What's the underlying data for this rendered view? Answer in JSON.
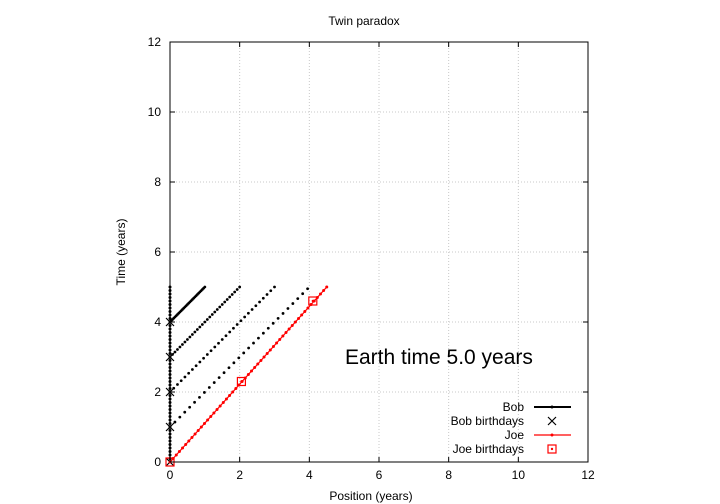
{
  "chart_data": {
    "type": "line",
    "title": "Twin paradox",
    "xlabel": "Position (years)",
    "ylabel": "Time (years)",
    "xlim": [
      0,
      12
    ],
    "ylim": [
      0,
      12
    ],
    "xticks": [
      "0",
      "2",
      "4",
      "6",
      "8",
      "10",
      "12"
    ],
    "yticks": [
      "0",
      "2",
      "4",
      "6",
      "8",
      "10",
      "12"
    ],
    "grid": true,
    "legend_position": "bottom-right",
    "annotation": "Earth time  5.0 years",
    "series": [
      {
        "name": "Bob",
        "style": "line-dots",
        "color": "#000000",
        "points": [
          [
            0,
            0
          ],
          [
            0,
            5.0
          ]
        ]
      },
      {
        "name": "Bob birthdays",
        "style": "cross",
        "color": "#000000",
        "points": [
          [
            0,
            0
          ],
          [
            0,
            1
          ],
          [
            0,
            2
          ],
          [
            0,
            3
          ],
          [
            0,
            4
          ]
        ]
      },
      {
        "name": "Joe",
        "style": "line-dots",
        "color": "#ff0000",
        "points": [
          [
            0,
            0
          ],
          [
            4.5,
            5.0
          ]
        ]
      },
      {
        "name": "Joe birthdays",
        "style": "square",
        "color": "#ff0000",
        "points": [
          [
            0,
            0
          ],
          [
            2.05,
            2.3
          ],
          [
            4.1,
            4.6
          ]
        ]
      }
    ],
    "light_signals": [
      [
        [
          0,
          1
        ],
        [
          3.95,
          4.95
        ]
      ],
      [
        [
          0,
          2
        ],
        [
          3.0,
          5.0
        ]
      ],
      [
        [
          0,
          3
        ],
        [
          2.0,
          5.0
        ]
      ],
      [
        [
          0,
          4
        ],
        [
          1.0,
          5.0
        ]
      ]
    ]
  }
}
